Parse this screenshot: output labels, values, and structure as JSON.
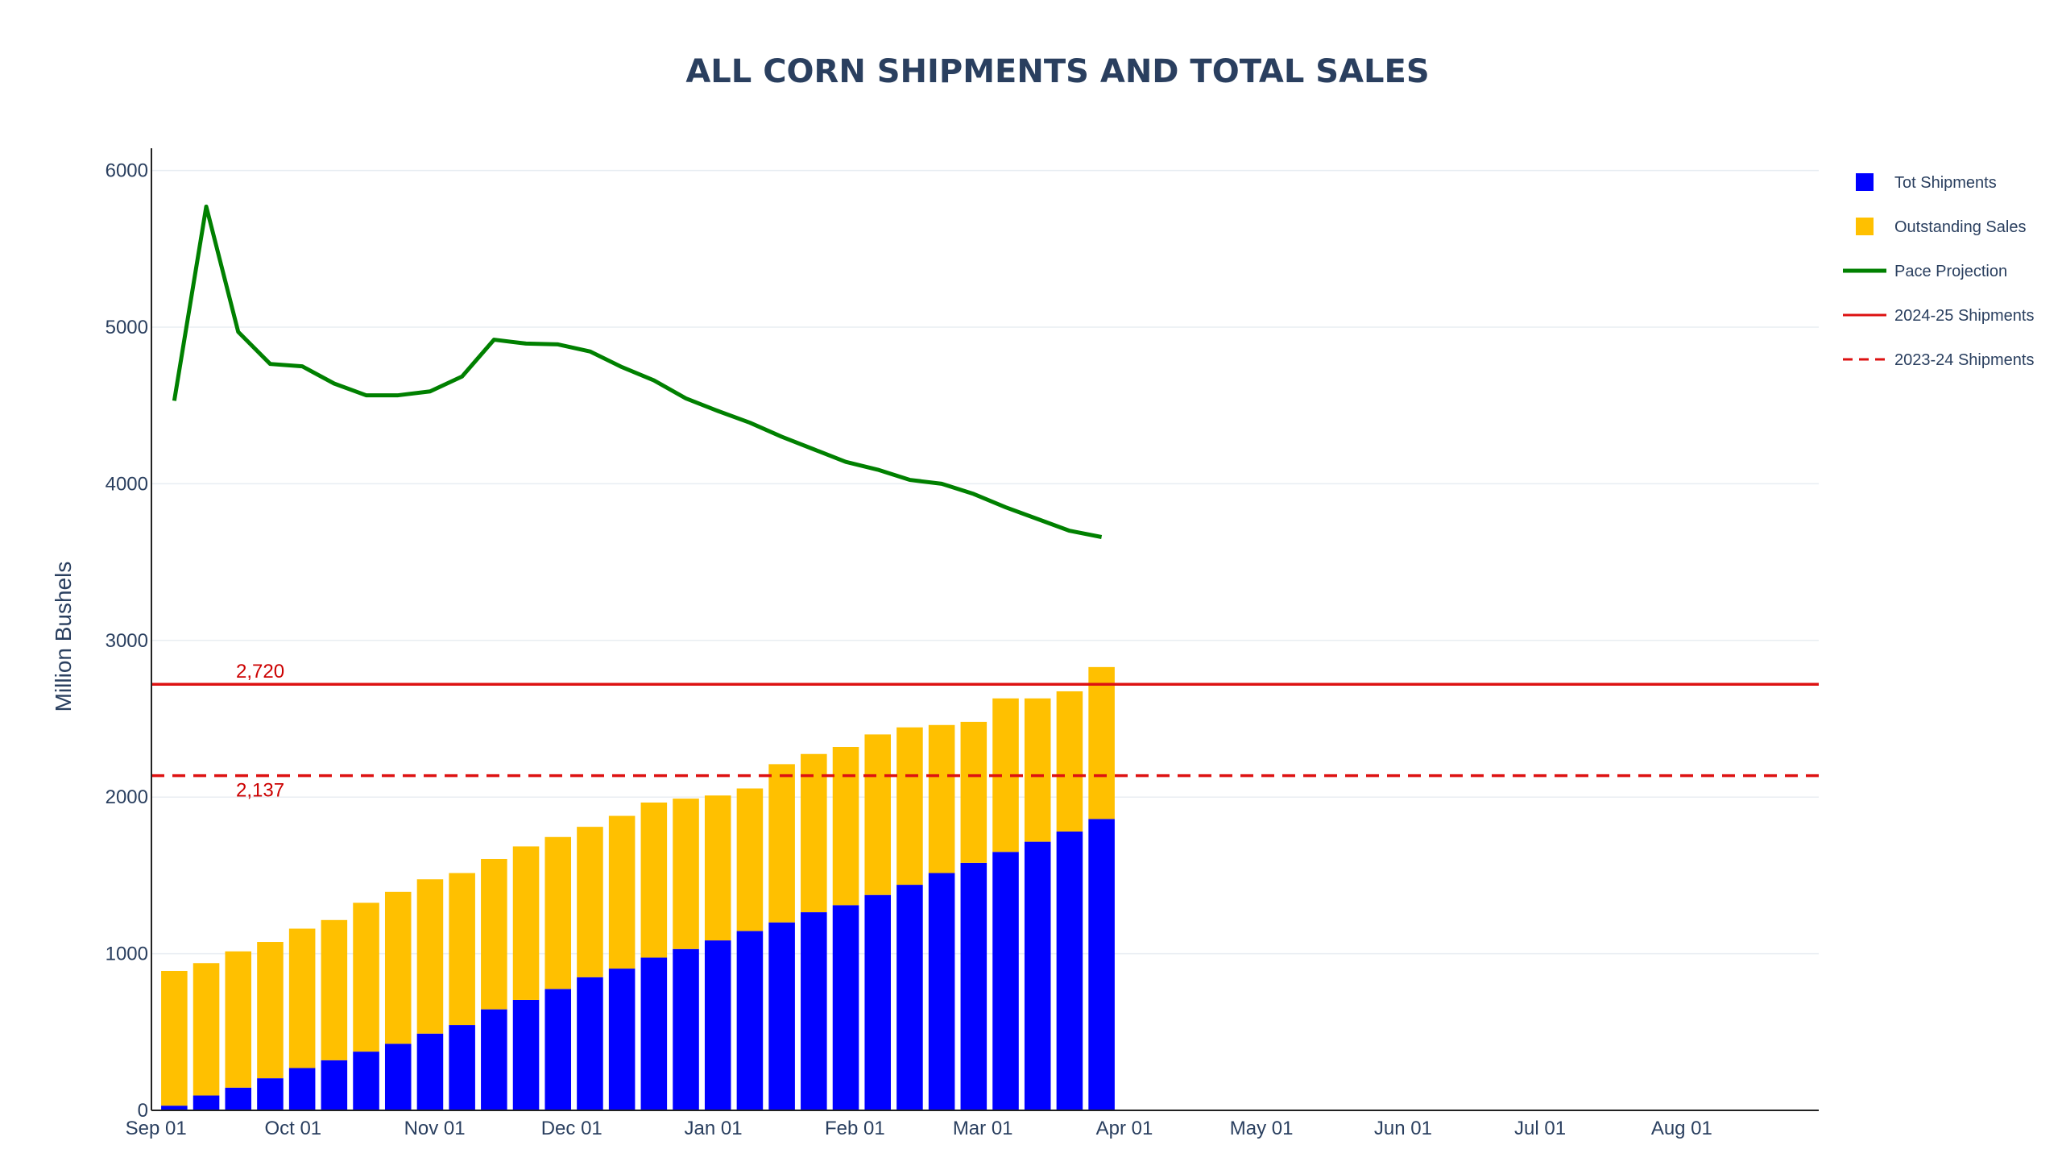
{
  "chart_data": {
    "type": "bar",
    "title": "ALL CORN SHIPMENTS AND TOTAL SALES",
    "ylabel": "Million Bushels",
    "xlabel": "",
    "ylim": [
      0,
      6070
    ],
    "xlim": [
      "2024-08-31",
      "2025-08-31"
    ],
    "grid": true,
    "legend_placement": "right",
    "colors": {
      "shipments": "#0000ff",
      "outstanding": "#ffc000",
      "pace": "#008000",
      "ref": "#dd1111",
      "text": "#2a3f5f",
      "grid": "#e8edf2"
    },
    "y_ticks": [
      "0",
      "1000",
      "2000",
      "3000",
      "4000",
      "5000",
      "6000"
    ],
    "x_ticks": [
      {
        "date": "2024-09-01",
        "label": "Sep 01"
      },
      {
        "date": "2024-10-01",
        "label": "Oct 01"
      },
      {
        "date": "2024-11-01",
        "label": "Nov 01"
      },
      {
        "date": "2024-12-01",
        "label": "Dec 01"
      },
      {
        "date": "2025-01-01",
        "label": "Jan 01"
      },
      {
        "date": "2025-02-01",
        "label": "Feb 01"
      },
      {
        "date": "2025-03-01",
        "label": "Mar 01"
      },
      {
        "date": "2025-04-01",
        "label": "Apr 01"
      },
      {
        "date": "2025-05-01",
        "label": "May 01"
      },
      {
        "date": "2025-06-01",
        "label": "Jun 01"
      },
      {
        "date": "2025-07-01",
        "label": "Jul 01"
      },
      {
        "date": "2025-08-01",
        "label": "Aug 01"
      }
    ],
    "x": [
      "2024-09-05",
      "2024-09-12",
      "2024-09-19",
      "2024-09-26",
      "2024-10-03",
      "2024-10-10",
      "2024-10-17",
      "2024-10-24",
      "2024-10-31",
      "2024-11-07",
      "2024-11-14",
      "2024-11-21",
      "2024-11-28",
      "2024-12-05",
      "2024-12-12",
      "2024-12-19",
      "2024-12-26",
      "2025-01-02",
      "2025-01-09",
      "2025-01-16",
      "2025-01-23",
      "2025-01-30",
      "2025-02-06",
      "2025-02-13",
      "2025-02-20",
      "2025-02-27",
      "2025-03-06",
      "2025-03-13",
      "2025-03-20",
      "2025-03-27"
    ],
    "series": [
      {
        "name": "Tot Shipments",
        "type": "bar",
        "values": [
          30,
          95,
          145,
          205,
          270,
          320,
          375,
          425,
          490,
          545,
          645,
          705,
          775,
          850,
          905,
          975,
          1030,
          1085,
          1145,
          1200,
          1265,
          1310,
          1375,
          1440,
          1515,
          1580,
          1650,
          1715,
          1780,
          1860
        ]
      },
      {
        "name": "Outstanding Sales",
        "type": "bar",
        "values": [
          860,
          845,
          870,
          870,
          890,
          895,
          950,
          970,
          985,
          970,
          960,
          980,
          970,
          960,
          975,
          990,
          960,
          925,
          910,
          1010,
          1010,
          1010,
          1025,
          1005,
          945,
          900,
          980,
          915,
          895,
          970
        ]
      },
      {
        "name": "Pace Projection",
        "type": "line",
        "values": [
          4530,
          5770,
          4970,
          4765,
          4750,
          4640,
          4565,
          4565,
          4590,
          4685,
          4920,
          4895,
          4890,
          4845,
          4745,
          4660,
          4545,
          4465,
          4390,
          4300,
          4220,
          4140,
          4090,
          4025,
          4000,
          3935,
          3850,
          3775,
          3700,
          3660
        ]
      }
    ],
    "reference_lines": [
      {
        "name": "2024-25 Shipments",
        "value": 2720,
        "label": "2,720",
        "style": "solid"
      },
      {
        "name": "2023-24 Shipments",
        "value": 2137,
        "label": "2,137",
        "style": "dashed"
      }
    ]
  }
}
